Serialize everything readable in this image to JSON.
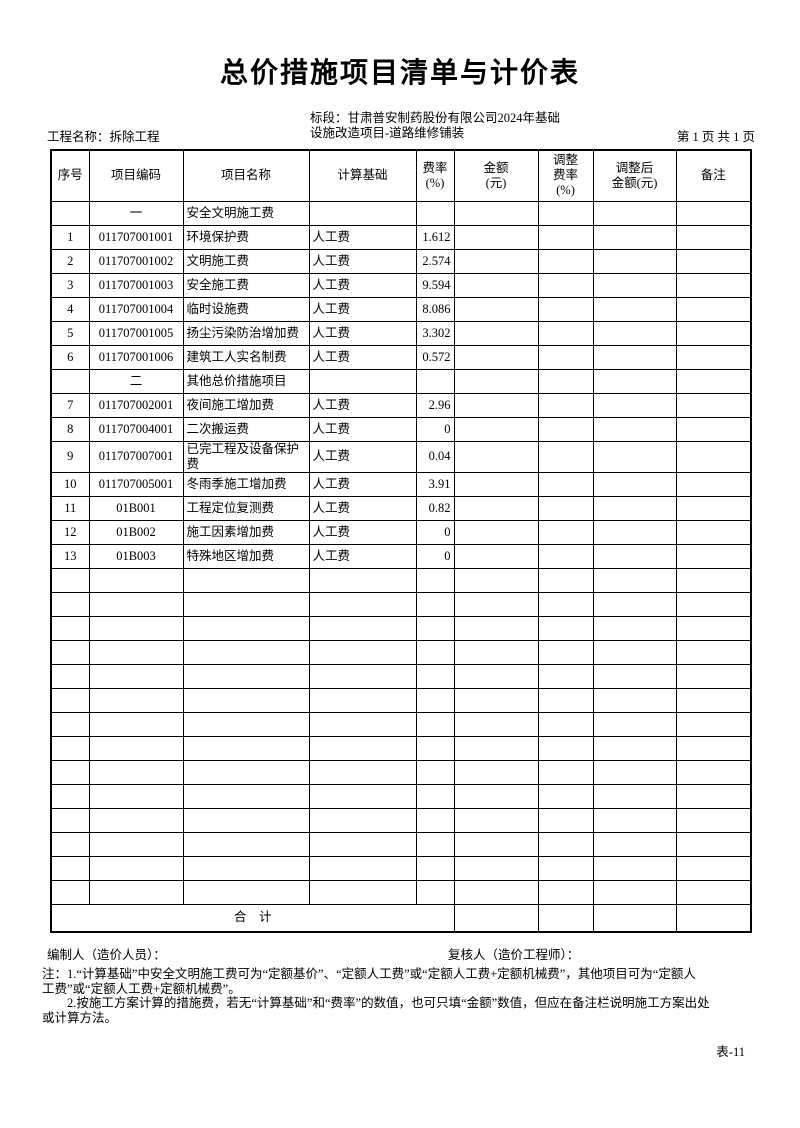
{
  "header": {
    "title": "总价措施项目清单与计价表",
    "project_name": "工程名称：拆除工程",
    "bid_section_line1": "标段：甘肃普安制药股份有限公司2024年基础",
    "bid_section_line2": "设施改造项目-道路维修铺装",
    "page_info": "第 1 页  共 1 页"
  },
  "table": {
    "headers": [
      "序号",
      "项目编码",
      "项目名称",
      "计算基础",
      "费率\n(%)",
      "金额\n(元)",
      "调整\n费率\n(%)",
      "调整后\n金额(元)",
      "备注"
    ],
    "rows": [
      {
        "no": "",
        "code": "一",
        "name": "安全文明施工费",
        "basis": "",
        "rate": ""
      },
      {
        "no": "1",
        "code": "011707001001",
        "name": "环境保护费",
        "basis": "人工费",
        "rate": "1.612"
      },
      {
        "no": "2",
        "code": "011707001002",
        "name": "文明施工费",
        "basis": "人工费",
        "rate": "2.574"
      },
      {
        "no": "3",
        "code": "011707001003",
        "name": "安全施工费",
        "basis": "人工费",
        "rate": "9.594"
      },
      {
        "no": "4",
        "code": "011707001004",
        "name": "临时设施费",
        "basis": "人工费",
        "rate": "8.086"
      },
      {
        "no": "5",
        "code": "011707001005",
        "name": "扬尘污染防治增加费",
        "basis": "人工费",
        "rate": "3.302"
      },
      {
        "no": "6",
        "code": "011707001006",
        "name": "建筑工人实名制费",
        "basis": "人工费",
        "rate": "0.572"
      },
      {
        "no": "",
        "code": "二",
        "name": "其他总价措施项目",
        "basis": "",
        "rate": ""
      },
      {
        "no": "7",
        "code": "011707002001",
        "name": "夜间施工增加费",
        "basis": "人工费",
        "rate": "2.96"
      },
      {
        "no": "8",
        "code": "011707004001",
        "name": "二次搬运费",
        "basis": "人工费",
        "rate": "0"
      },
      {
        "no": "9",
        "code": "011707007001",
        "name": "已完工程及设备保护费",
        "basis": "人工费",
        "rate": "0.04"
      },
      {
        "no": "10",
        "code": "011707005001",
        "name": "冬雨季施工增加费",
        "basis": "人工费",
        "rate": "3.91"
      },
      {
        "no": "11",
        "code": "01B001",
        "name": "工程定位复测费",
        "basis": "人工费",
        "rate": "0.82"
      },
      {
        "no": "12",
        "code": "01B002",
        "name": "施工因素增加费",
        "basis": "人工费",
        "rate": "0"
      },
      {
        "no": "13",
        "code": "01B003",
        "name": "特殊地区增加费",
        "basis": "人工费",
        "rate": "0"
      }
    ],
    "empty_rows": 14,
    "total_label": "合　计"
  },
  "footer": {
    "compiler_label": "编制人（造价人员）：",
    "reviewer_label": "复核人（造价工程师）：",
    "notes": [
      "注：1.“计算基础”中安全文明施工费可为“定额基价”、“定额人工费”或“定额人工费+定额机械费”，其他项目可为“定额人",
      "工费”或“定额人工费+定额机械费”。",
      "　　2.按施工方案计算的措施费，若无“计算基础”和“费率”的数值，也可只填“金额”数值，但应在备注栏说明施工方案出处",
      "或计算方法。"
    ],
    "form_number": "表-11"
  }
}
